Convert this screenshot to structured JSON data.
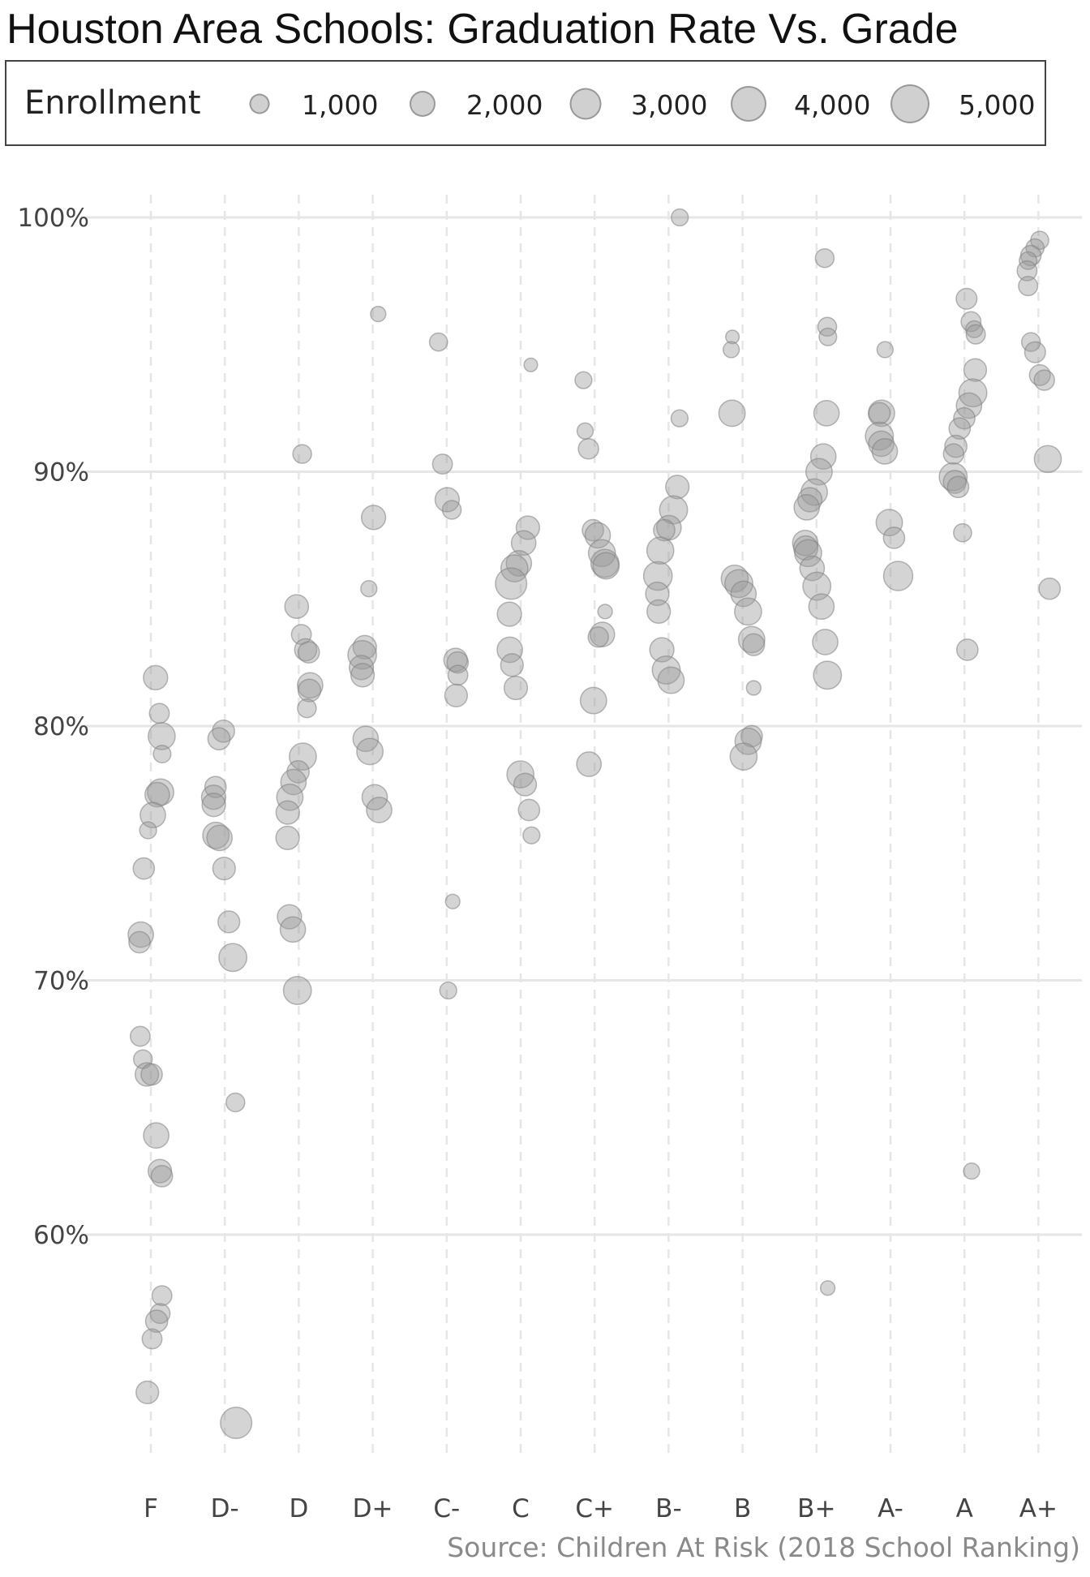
{
  "chart_data": {
    "type": "scatter",
    "title": "Houston Area Schools: Graduation Rate Vs. Grade",
    "source": "Source: Children At Risk (2018 School Ranking)",
    "categories": [
      "F",
      "D-",
      "D",
      "D+",
      "C-",
      "C",
      "C+",
      "B-",
      "B",
      "B+",
      "A-",
      "A",
      "A+"
    ],
    "y_ticks": [
      {
        "value": 60,
        "label": "60%"
      },
      {
        "value": 70,
        "label": "70%"
      },
      {
        "value": 80,
        "label": "80%"
      },
      {
        "value": 90,
        "label": "90%"
      },
      {
        "value": 100,
        "label": "100%"
      }
    ],
    "ylim": [
      51.6,
      102.4
    ],
    "grid": true,
    "legend": {
      "title": "Enrollment",
      "placement": "top",
      "items": [
        {
          "label": "1,000",
          "value": 1000
        },
        {
          "label": "2,000",
          "value": 2000
        },
        {
          "label": "3,000",
          "value": 3000
        },
        {
          "label": "4,000",
          "value": 4000
        },
        {
          "label": "5,000",
          "value": 5000
        }
      ]
    },
    "colors": {
      "point_fill": "#999999",
      "point_stroke": "#7f7f7f",
      "grid": "#e6e6e6",
      "axis_text": "#444444"
    },
    "points": [
      {
        "grade": "F",
        "y": 81.9,
        "enrollment": 2200
      },
      {
        "grade": "F",
        "y": 80.5,
        "enrollment": 1200
      },
      {
        "grade": "F",
        "y": 79.6,
        "enrollment": 3000
      },
      {
        "grade": "F",
        "y": 78.9,
        "enrollment": 800
      },
      {
        "grade": "F",
        "y": 77.4,
        "enrollment": 2800
      },
      {
        "grade": "F",
        "y": 77.3,
        "enrollment": 2300
      },
      {
        "grade": "F",
        "y": 76.5,
        "enrollment": 2500
      },
      {
        "grade": "F",
        "y": 75.9,
        "enrollment": 700
      },
      {
        "grade": "F",
        "y": 74.4,
        "enrollment": 1500
      },
      {
        "grade": "F",
        "y": 71.8,
        "enrollment": 2500
      },
      {
        "grade": "F",
        "y": 71.5,
        "enrollment": 1500
      },
      {
        "grade": "F",
        "y": 67.8,
        "enrollment": 1200
      },
      {
        "grade": "F",
        "y": 66.9,
        "enrollment": 1000
      },
      {
        "grade": "F",
        "y": 66.3,
        "enrollment": 2000
      },
      {
        "grade": "F",
        "y": 66.3,
        "enrollment": 1500
      },
      {
        "grade": "F",
        "y": 63.9,
        "enrollment": 2500
      },
      {
        "grade": "F",
        "y": 62.5,
        "enrollment": 2000
      },
      {
        "grade": "F",
        "y": 62.3,
        "enrollment": 1500
      },
      {
        "grade": "F",
        "y": 57.6,
        "enrollment": 1200
      },
      {
        "grade": "F",
        "y": 56.9,
        "enrollment": 1200
      },
      {
        "grade": "F",
        "y": 56.6,
        "enrollment": 1700
      },
      {
        "grade": "F",
        "y": 55.9,
        "enrollment": 1200
      },
      {
        "grade": "F",
        "y": 53.8,
        "enrollment": 1800
      },
      {
        "grade": "D-",
        "y": 79.8,
        "enrollment": 1700
      },
      {
        "grade": "D-",
        "y": 79.5,
        "enrollment": 1700
      },
      {
        "grade": "D-",
        "y": 77.6,
        "enrollment": 1500
      },
      {
        "grade": "D-",
        "y": 77.2,
        "enrollment": 2200
      },
      {
        "grade": "D-",
        "y": 76.9,
        "enrollment": 2000
      },
      {
        "grade": "D-",
        "y": 75.7,
        "enrollment": 2800
      },
      {
        "grade": "D-",
        "y": 75.6,
        "enrollment": 2500
      },
      {
        "grade": "D-",
        "y": 74.4,
        "enrollment": 1800
      },
      {
        "grade": "D-",
        "y": 72.3,
        "enrollment": 1600
      },
      {
        "grade": "D-",
        "y": 70.9,
        "enrollment": 3300
      },
      {
        "grade": "D-",
        "y": 65.2,
        "enrollment": 1000
      },
      {
        "grade": "D-",
        "y": 52.6,
        "enrollment": 4500
      },
      {
        "grade": "D",
        "y": 84.7,
        "enrollment": 2100
      },
      {
        "grade": "D",
        "y": 83.6,
        "enrollment": 1200
      },
      {
        "grade": "D",
        "y": 83.0,
        "enrollment": 1700
      },
      {
        "grade": "D",
        "y": 82.9,
        "enrollment": 1500
      },
      {
        "grade": "D",
        "y": 81.6,
        "enrollment": 2500
      },
      {
        "grade": "D",
        "y": 81.4,
        "enrollment": 1800
      },
      {
        "grade": "D",
        "y": 80.7,
        "enrollment": 1000
      },
      {
        "grade": "D",
        "y": 78.8,
        "enrollment": 3000
      },
      {
        "grade": "D",
        "y": 78.2,
        "enrollment": 1700
      },
      {
        "grade": "D",
        "y": 77.8,
        "enrollment": 2500
      },
      {
        "grade": "D",
        "y": 77.2,
        "enrollment": 2800
      },
      {
        "grade": "D",
        "y": 76.6,
        "enrollment": 2000
      },
      {
        "grade": "D",
        "y": 75.6,
        "enrollment": 2000
      },
      {
        "grade": "D",
        "y": 72.5,
        "enrollment": 2200
      },
      {
        "grade": "D",
        "y": 72.0,
        "enrollment": 2500
      },
      {
        "grade": "D",
        "y": 69.6,
        "enrollment": 3300
      },
      {
        "grade": "D",
        "y": 90.7,
        "enrollment": 1000
      },
      {
        "grade": "D+",
        "y": 96.2,
        "enrollment": 500
      },
      {
        "grade": "D+",
        "y": 88.2,
        "enrollment": 2200
      },
      {
        "grade": "D+",
        "y": 85.4,
        "enrollment": 600
      },
      {
        "grade": "D+",
        "y": 83.1,
        "enrollment": 2000
      },
      {
        "grade": "D+",
        "y": 82.8,
        "enrollment": 3500
      },
      {
        "grade": "D+",
        "y": 82.3,
        "enrollment": 2200
      },
      {
        "grade": "D+",
        "y": 82.0,
        "enrollment": 2000
      },
      {
        "grade": "D+",
        "y": 79.5,
        "enrollment": 2500
      },
      {
        "grade": "D+",
        "y": 79.0,
        "enrollment": 2800
      },
      {
        "grade": "D+",
        "y": 77.2,
        "enrollment": 2500
      },
      {
        "grade": "D+",
        "y": 76.7,
        "enrollment": 2500
      },
      {
        "grade": "C-",
        "y": 95.1,
        "enrollment": 900
      },
      {
        "grade": "C-",
        "y": 90.3,
        "enrollment": 1200
      },
      {
        "grade": "C-",
        "y": 88.9,
        "enrollment": 2200
      },
      {
        "grade": "C-",
        "y": 88.5,
        "enrollment": 1000
      },
      {
        "grade": "C-",
        "y": 82.6,
        "enrollment": 2000
      },
      {
        "grade": "C-",
        "y": 82.5,
        "enrollment": 1500
      },
      {
        "grade": "C-",
        "y": 82.0,
        "enrollment": 1200
      },
      {
        "grade": "C-",
        "y": 81.2,
        "enrollment": 1800
      },
      {
        "grade": "C-",
        "y": 73.1,
        "enrollment": 400
      },
      {
        "grade": "C-",
        "y": 69.6,
        "enrollment": 700
      },
      {
        "grade": "C",
        "y": 94.2,
        "enrollment": 300
      },
      {
        "grade": "C",
        "y": 87.8,
        "enrollment": 2000
      },
      {
        "grade": "C",
        "y": 87.2,
        "enrollment": 2300
      },
      {
        "grade": "C",
        "y": 86.4,
        "enrollment": 2500
      },
      {
        "grade": "C",
        "y": 86.2,
        "enrollment": 3000
      },
      {
        "grade": "C",
        "y": 85.6,
        "enrollment": 4500
      },
      {
        "grade": "C",
        "y": 84.4,
        "enrollment": 2200
      },
      {
        "grade": "C",
        "y": 83.0,
        "enrollment": 2500
      },
      {
        "grade": "C",
        "y": 82.4,
        "enrollment": 1800
      },
      {
        "grade": "C",
        "y": 81.5,
        "enrollment": 2000
      },
      {
        "grade": "C",
        "y": 78.1,
        "enrollment": 3000
      },
      {
        "grade": "C",
        "y": 77.7,
        "enrollment": 1800
      },
      {
        "grade": "C",
        "y": 76.7,
        "enrollment": 1500
      },
      {
        "grade": "C",
        "y": 75.7,
        "enrollment": 700
      },
      {
        "grade": "C+",
        "y": 93.6,
        "enrollment": 700
      },
      {
        "grade": "C+",
        "y": 91.6,
        "enrollment": 600
      },
      {
        "grade": "C+",
        "y": 90.9,
        "enrollment": 1300
      },
      {
        "grade": "C+",
        "y": 87.7,
        "enrollment": 1500
      },
      {
        "grade": "C+",
        "y": 87.5,
        "enrollment": 2500
      },
      {
        "grade": "C+",
        "y": 86.8,
        "enrollment": 3000
      },
      {
        "grade": "C+",
        "y": 86.4,
        "enrollment": 3300
      },
      {
        "grade": "C+",
        "y": 86.3,
        "enrollment": 2800
      },
      {
        "grade": "C+",
        "y": 84.5,
        "enrollment": 400
      },
      {
        "grade": "C+",
        "y": 83.6,
        "enrollment": 2300
      },
      {
        "grade": "C+",
        "y": 83.5,
        "enrollment": 1300
      },
      {
        "grade": "C+",
        "y": 81.0,
        "enrollment": 2800
      },
      {
        "grade": "C+",
        "y": 78.5,
        "enrollment": 2300
      },
      {
        "grade": "B-",
        "y": 100.0,
        "enrollment": 700
      },
      {
        "grade": "B-",
        "y": 92.1,
        "enrollment": 700
      },
      {
        "grade": "B-",
        "y": 89.4,
        "enrollment": 2000
      },
      {
        "grade": "B-",
        "y": 88.5,
        "enrollment": 3300
      },
      {
        "grade": "B-",
        "y": 87.8,
        "enrollment": 2300
      },
      {
        "grade": "B-",
        "y": 87.7,
        "enrollment": 1500
      },
      {
        "grade": "B-",
        "y": 86.9,
        "enrollment": 3000
      },
      {
        "grade": "B-",
        "y": 85.9,
        "enrollment": 3500
      },
      {
        "grade": "B-",
        "y": 85.2,
        "enrollment": 2000
      },
      {
        "grade": "B-",
        "y": 84.5,
        "enrollment": 2000
      },
      {
        "grade": "B-",
        "y": 83.0,
        "enrollment": 2200
      },
      {
        "grade": "B-",
        "y": 82.2,
        "enrollment": 3300
      },
      {
        "grade": "B-",
        "y": 81.8,
        "enrollment": 2800
      },
      {
        "grade": "B",
        "y": 95.3,
        "enrollment": 300
      },
      {
        "grade": "B",
        "y": 94.8,
        "enrollment": 600
      },
      {
        "grade": "B",
        "y": 92.3,
        "enrollment": 2800
      },
      {
        "grade": "B",
        "y": 85.8,
        "enrollment": 3000
      },
      {
        "grade": "B",
        "y": 85.6,
        "enrollment": 3300
      },
      {
        "grade": "B",
        "y": 85.2,
        "enrollment": 2500
      },
      {
        "grade": "B",
        "y": 84.5,
        "enrollment": 3000
      },
      {
        "grade": "B",
        "y": 83.4,
        "enrollment": 2800
      },
      {
        "grade": "B",
        "y": 83.2,
        "enrollment": 1600
      },
      {
        "grade": "B",
        "y": 81.5,
        "enrollment": 400
      },
      {
        "grade": "B",
        "y": 79.6,
        "enrollment": 1500
      },
      {
        "grade": "B",
        "y": 79.4,
        "enrollment": 2800
      },
      {
        "grade": "B",
        "y": 78.8,
        "enrollment": 3000
      },
      {
        "grade": "B+",
        "y": 98.4,
        "enrollment": 1000
      },
      {
        "grade": "B+",
        "y": 95.7,
        "enrollment": 1000
      },
      {
        "grade": "B+",
        "y": 95.3,
        "enrollment": 800
      },
      {
        "grade": "B+",
        "y": 92.3,
        "enrollment": 2500
      },
      {
        "grade": "B+",
        "y": 90.6,
        "enrollment": 2500
      },
      {
        "grade": "B+",
        "y": 90.0,
        "enrollment": 2800
      },
      {
        "grade": "B+",
        "y": 89.2,
        "enrollment": 2800
      },
      {
        "grade": "B+",
        "y": 88.9,
        "enrollment": 2200
      },
      {
        "grade": "B+",
        "y": 88.6,
        "enrollment": 2500
      },
      {
        "grade": "B+",
        "y": 87.2,
        "enrollment": 2500
      },
      {
        "grade": "B+",
        "y": 87.0,
        "enrollment": 2200
      },
      {
        "grade": "B+",
        "y": 86.8,
        "enrollment": 3000
      },
      {
        "grade": "B+",
        "y": 86.2,
        "enrollment": 2300
      },
      {
        "grade": "B+",
        "y": 85.5,
        "enrollment": 3300
      },
      {
        "grade": "B+",
        "y": 84.7,
        "enrollment": 2500
      },
      {
        "grade": "B+",
        "y": 83.3,
        "enrollment": 2500
      },
      {
        "grade": "B+",
        "y": 82.0,
        "enrollment": 3300
      },
      {
        "grade": "B+",
        "y": 57.9,
        "enrollment": 400
      },
      {
        "grade": "A-",
        "y": 94.8,
        "enrollment": 600
      },
      {
        "grade": "A-",
        "y": 92.3,
        "enrollment": 2800
      },
      {
        "grade": "A-",
        "y": 92.3,
        "enrollment": 1500
      },
      {
        "grade": "A-",
        "y": 91.4,
        "enrollment": 3300
      },
      {
        "grade": "A-",
        "y": 91.1,
        "enrollment": 2500
      },
      {
        "grade": "A-",
        "y": 90.8,
        "enrollment": 2500
      },
      {
        "grade": "A-",
        "y": 88.0,
        "enrollment": 2800
      },
      {
        "grade": "A-",
        "y": 87.4,
        "enrollment": 1500
      },
      {
        "grade": "A-",
        "y": 85.9,
        "enrollment": 3700
      },
      {
        "grade": "A",
        "y": 96.8,
        "enrollment": 1400
      },
      {
        "grade": "A",
        "y": 95.9,
        "enrollment": 1200
      },
      {
        "grade": "A",
        "y": 95.6,
        "enrollment": 700
      },
      {
        "grade": "A",
        "y": 95.4,
        "enrollment": 1100
      },
      {
        "grade": "A",
        "y": 94.0,
        "enrollment": 1800
      },
      {
        "grade": "A",
        "y": 93.1,
        "enrollment": 3300
      },
      {
        "grade": "A",
        "y": 92.6,
        "enrollment": 2500
      },
      {
        "grade": "A",
        "y": 92.1,
        "enrollment": 1500
      },
      {
        "grade": "A",
        "y": 91.7,
        "enrollment": 1500
      },
      {
        "grade": "A",
        "y": 91.0,
        "enrollment": 1700
      },
      {
        "grade": "A",
        "y": 90.7,
        "enrollment": 1300
      },
      {
        "grade": "A",
        "y": 89.8,
        "enrollment": 3300
      },
      {
        "grade": "A",
        "y": 89.6,
        "enrollment": 1900
      },
      {
        "grade": "A",
        "y": 89.4,
        "enrollment": 1500
      },
      {
        "grade": "A",
        "y": 87.6,
        "enrollment": 900
      },
      {
        "grade": "A",
        "y": 83.0,
        "enrollment": 1500
      },
      {
        "grade": "A",
        "y": 62.5,
        "enrollment": 600
      },
      {
        "grade": "A+",
        "y": 99.1,
        "enrollment": 900
      },
      {
        "grade": "A+",
        "y": 98.8,
        "enrollment": 900
      },
      {
        "grade": "A+",
        "y": 98.5,
        "enrollment": 1300
      },
      {
        "grade": "A+",
        "y": 98.3,
        "enrollment": 800
      },
      {
        "grade": "A+",
        "y": 97.9,
        "enrollment": 1200
      },
      {
        "grade": "A+",
        "y": 97.3,
        "enrollment": 1100
      },
      {
        "grade": "A+",
        "y": 95.1,
        "enrollment": 1000
      },
      {
        "grade": "A+",
        "y": 94.7,
        "enrollment": 1400
      },
      {
        "grade": "A+",
        "y": 93.8,
        "enrollment": 1400
      },
      {
        "grade": "A+",
        "y": 93.6,
        "enrollment": 1300
      },
      {
        "grade": "A+",
        "y": 90.5,
        "enrollment": 3000
      },
      {
        "grade": "A+",
        "y": 85.4,
        "enrollment": 1500
      }
    ]
  }
}
